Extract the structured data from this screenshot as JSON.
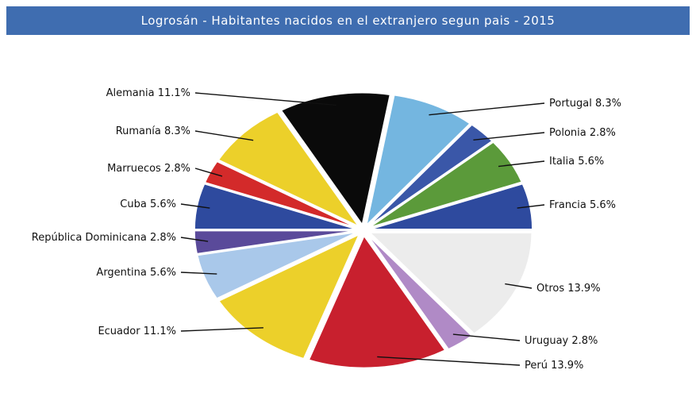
{
  "chart_data": {
    "type": "pie",
    "title": "Logrosán - Habitantes nacidos en el extranjero segun pais - 2015",
    "slices": [
      {
        "label": "Francia 5.6%",
        "name": "Francia",
        "value": 5.6,
        "color": "#2e4a9e"
      },
      {
        "label": "Italia 5.6%",
        "name": "Italia",
        "value": 5.6,
        "color": "#5b9a3a"
      },
      {
        "label": "Polonia 2.8%",
        "name": "Polonia",
        "value": 2.8,
        "color": "#3a57a8"
      },
      {
        "label": "Portugal 8.3%",
        "name": "Portugal",
        "value": 8.3,
        "color": "#74b6e0"
      },
      {
        "label": "Alemania 11.1%",
        "name": "Alemania",
        "value": 11.1,
        "color": "#0a0a0a"
      },
      {
        "label": "Rumanía 8.3%",
        "name": "Rumanía",
        "value": 8.3,
        "color": "#ecd02a"
      },
      {
        "label": "Marruecos 2.8%",
        "name": "Marruecos",
        "value": 2.8,
        "color": "#d32a2a"
      },
      {
        "label": "Cuba 5.6%",
        "name": "Cuba",
        "value": 5.6,
        "color": "#2e4a9e"
      },
      {
        "label": "República Dominicana 2.8%",
        "name": "República Dominicana",
        "value": 2.8,
        "color": "#5a4a9a"
      },
      {
        "label": "Argentina 5.6%",
        "name": "Argentina",
        "value": 5.6,
        "color": "#a9c8ea"
      },
      {
        "label": "Ecuador 11.1%",
        "name": "Ecuador",
        "value": 11.1,
        "color": "#ecd02a"
      },
      {
        "label": "Perú 13.9%",
        "name": "Perú",
        "value": 13.9,
        "color": "#c8202e"
      },
      {
        "label": "Uruguay 2.8%",
        "name": "Uruguay",
        "value": 2.8,
        "color": "#b08ac6"
      },
      {
        "label": "Otros 13.9%",
        "name": "Otros",
        "value": 13.9,
        "color": "#ececec"
      }
    ]
  }
}
